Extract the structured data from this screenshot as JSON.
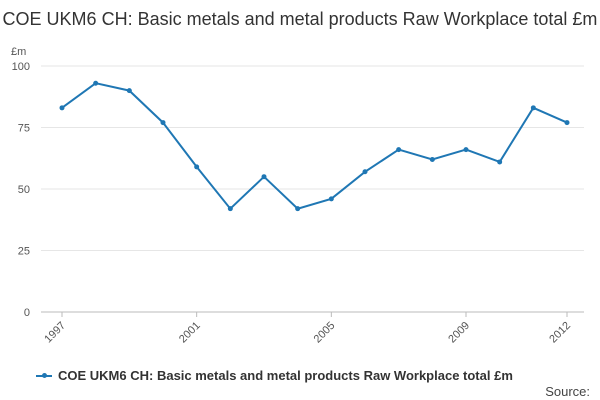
{
  "chart_data": {
    "type": "line",
    "title": "COE UKM6 CH: Basic metals and metal products Raw Workplace total £m",
    "unit_label": "£m",
    "xlabel": "",
    "ylabel": "£m",
    "ylim": [
      0,
      100
    ],
    "y_ticks": [
      0,
      25,
      50,
      75,
      100
    ],
    "x_tick_labels": [
      "1997",
      "2001",
      "2005",
      "2009",
      "2012"
    ],
    "x": [
      1997,
      1998,
      1999,
      2000,
      2001,
      2002,
      2003,
      2004,
      2005,
      2006,
      2007,
      2008,
      2009,
      2010,
      2011,
      2012
    ],
    "series": [
      {
        "name": "COE UKM6 CH: Basic metals and metal products Raw Workplace total £m",
        "values": [
          83,
          93,
          90,
          77,
          59,
          42,
          55,
          42,
          46,
          57,
          66,
          62,
          66,
          61,
          83,
          77
        ]
      }
    ],
    "grid": true,
    "legend": "bottom-left",
    "line_color": "#1f77b4",
    "source_label": "Source:"
  }
}
